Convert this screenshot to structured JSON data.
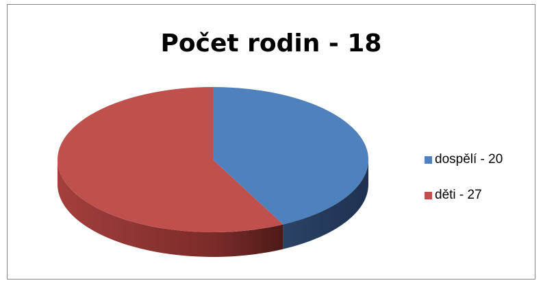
{
  "chart_data": {
    "type": "pie",
    "title": "Počet rodin - 18",
    "style": "3d",
    "slices": [
      {
        "label": "dospělí - 20",
        "value": 20,
        "color": "#4F81BD"
      },
      {
        "label": "děti - 27",
        "value": 27,
        "color": "#C0504D"
      }
    ],
    "legend": "right"
  }
}
